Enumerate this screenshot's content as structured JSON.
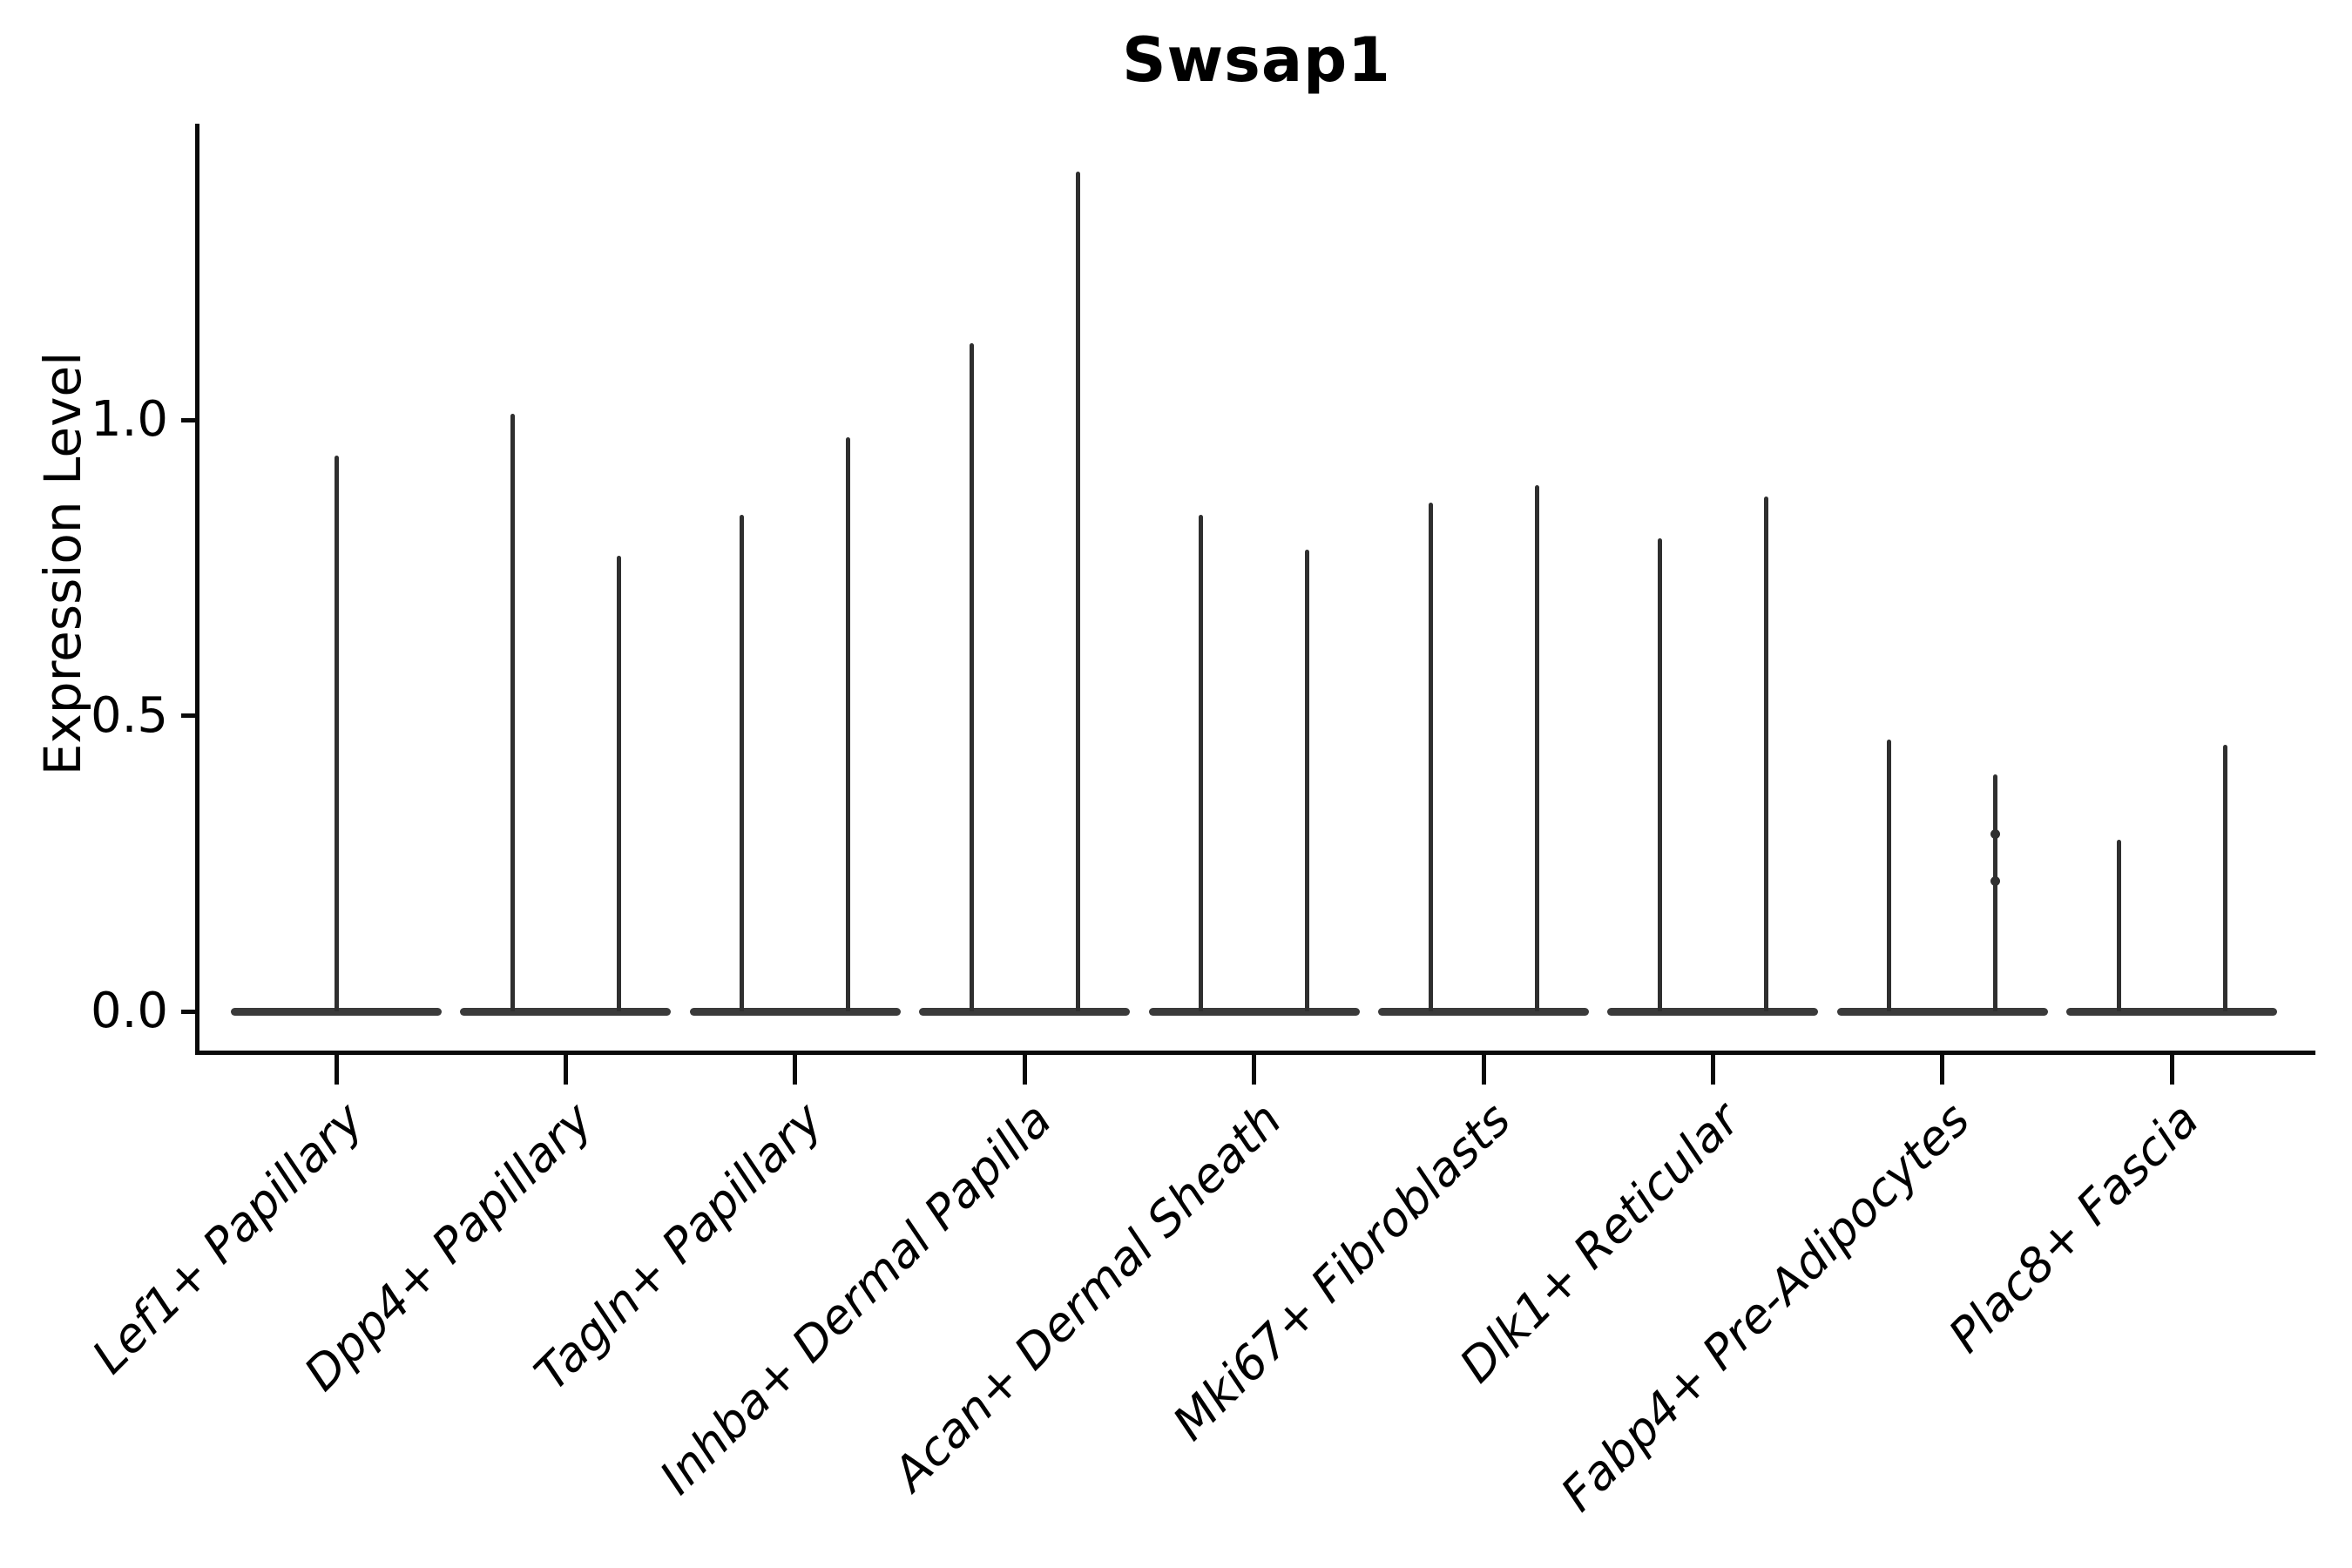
{
  "title": "Swsap1",
  "axes": {
    "ylabel": "Expression Level",
    "ytick_labels": [
      "0.0",
      "0.5",
      "1.0"
    ]
  },
  "colors": {
    "violin_stroke": "#2f2f2f",
    "violin_base_stroke": "#3a3a3a",
    "axis": "#0a0a0a",
    "text": "#000000",
    "background": "#ffffff"
  },
  "chart_data": {
    "type": "violin",
    "title": "Swsap1",
    "xlabel": "",
    "ylabel": "Expression Level",
    "ylim": [
      0,
      1.5
    ],
    "yticks": [
      0,
      0.5,
      1.0
    ],
    "grid": false,
    "legend": null,
    "orientation": "vertical",
    "description": "Zero-inflated single-cell expression violins: each violin collapses to a wide flat base at expression 0 with a thin vertical tail reaching its maximum expression value. Most cell-type groups show two adjacent violins; the first group shows one centered violin.",
    "categories": [
      "Lef1+ Papillary",
      "Dpp4+ Papillary",
      "Tagln+ Papillary",
      "Inhba+ Dermal Papilla",
      "Acan+ Dermal Sheath",
      "Mki67+ Fibroblasts",
      "Dlk1+ Reticular",
      "Fabp4+ Pre-Adipocytes",
      "Plac8+ Fascia"
    ],
    "groups": [
      {
        "category": "Lef1+ Papillary",
        "violins": [
          {
            "position": "center",
            "baseline_value": 0,
            "max": 0.94
          }
        ]
      },
      {
        "category": "Dpp4+ Papillary",
        "violins": [
          {
            "position": "left",
            "baseline_value": 0,
            "max": 1.01
          },
          {
            "position": "right",
            "baseline_value": 0,
            "max": 0.77
          }
        ]
      },
      {
        "category": "Tagln+ Papillary",
        "violins": [
          {
            "position": "left",
            "baseline_value": 0,
            "max": 0.84
          },
          {
            "position": "right",
            "baseline_value": 0,
            "max": 0.97
          }
        ]
      },
      {
        "category": "Inhba+ Dermal Papilla",
        "violins": [
          {
            "position": "left",
            "baseline_value": 0,
            "max": 1.13
          },
          {
            "position": "right",
            "baseline_value": 0,
            "max": 1.42
          }
        ]
      },
      {
        "category": "Acan+ Dermal Sheath",
        "violins": [
          {
            "position": "left",
            "baseline_value": 0,
            "max": 0.84
          },
          {
            "position": "right",
            "baseline_value": 0,
            "max": 0.78
          }
        ]
      },
      {
        "category": "Mki67+ Fibroblasts",
        "violins": [
          {
            "position": "left",
            "baseline_value": 0,
            "max": 0.86
          },
          {
            "position": "right",
            "baseline_value": 0,
            "max": 0.89
          }
        ]
      },
      {
        "category": "Dlk1+ Reticular",
        "violins": [
          {
            "position": "left",
            "baseline_value": 0,
            "max": 0.8
          },
          {
            "position": "right",
            "baseline_value": 0,
            "max": 0.87
          }
        ]
      },
      {
        "category": "Fabp4+ Pre-Adipocytes",
        "violins": [
          {
            "position": "left",
            "baseline_value": 0,
            "max": 0.46
          },
          {
            "position": "right",
            "baseline_value": 0,
            "max": 0.4,
            "dots": [
              0.22,
              0.3
            ]
          }
        ]
      },
      {
        "category": "Plac8+ Fascia",
        "violins": [
          {
            "position": "left",
            "baseline_value": 0,
            "max": 0.29
          },
          {
            "position": "right",
            "baseline_value": 0,
            "max": 0.45
          }
        ]
      }
    ]
  }
}
